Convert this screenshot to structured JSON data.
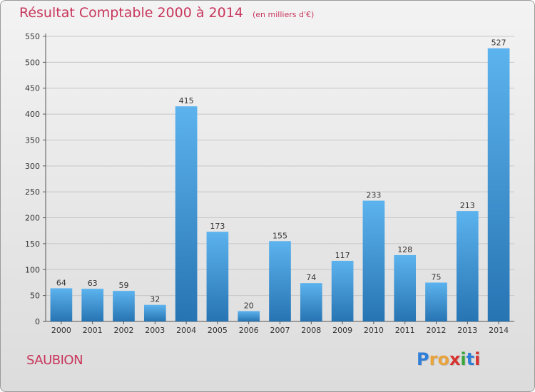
{
  "header": {
    "title": "Résultat Comptable 2000 à 2014",
    "unit": "(en milliers d'€)"
  },
  "commune": "SAUBION",
  "logo": {
    "letters": [
      "P",
      "r",
      "o",
      "x",
      "i",
      "t",
      "i"
    ],
    "colors": [
      "#2f7ed8",
      "#e8a33c",
      "#e8a33c",
      "#d6322f",
      "#3aa63a",
      "#2f7ed8",
      "#d6322f"
    ]
  },
  "colors": {
    "bar_top": "#5cb3ee",
    "bar_bottom": "#2774b3",
    "grid": "#c6c6c6",
    "title": "#c8365b"
  },
  "chart_data": {
    "type": "bar",
    "title": "Résultat Comptable 2000 à 2014",
    "ylabel": "(en milliers d'€)",
    "xlabel": "",
    "categories": [
      "2000",
      "2001",
      "2002",
      "2003",
      "2004",
      "2005",
      "2006",
      "2007",
      "2008",
      "2009",
      "2010",
      "2011",
      "2012",
      "2013",
      "2014"
    ],
    "values": [
      64,
      63,
      59,
      32,
      415,
      173,
      20,
      155,
      74,
      117,
      233,
      128,
      75,
      213,
      527
    ],
    "ylim": [
      0,
      550
    ],
    "yticks": [
      0,
      50,
      100,
      150,
      200,
      250,
      300,
      350,
      400,
      450,
      500,
      550
    ],
    "grid": true
  }
}
